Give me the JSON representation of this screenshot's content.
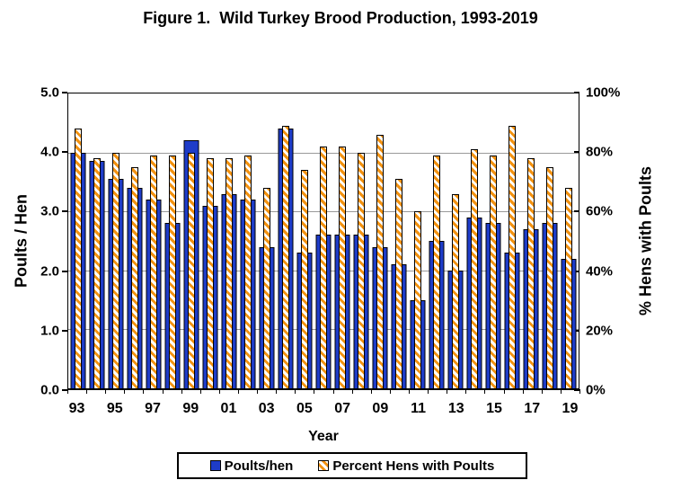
{
  "title": "Figure 1.  Wild Turkey Brood Production, 1993-2019",
  "colors": {
    "poults_blue": "#1e3cc8",
    "hatch_orange": "#f39210",
    "hatch_white": "#ffffff",
    "gridline_gray": "#999999",
    "axis_black": "#000000"
  },
  "left_axis": {
    "title": "Poults / Hen",
    "ticks": [
      "5.0",
      "4.0",
      "3.0",
      "2.0",
      "1.0",
      "0.0"
    ]
  },
  "right_axis": {
    "title": "% Hens with Poults",
    "ticks": [
      "100%",
      "80%",
      "60%",
      "40%",
      "20%",
      "0%"
    ]
  },
  "x_axis": {
    "title": "Year",
    "ticks": [
      "93",
      "95",
      "97",
      "99",
      "01",
      "03",
      "05",
      "07",
      "09",
      "11",
      "13",
      "15",
      "17",
      "19"
    ]
  },
  "legend": {
    "items": [
      {
        "label": "Poults/hen"
      },
      {
        "label": "Percent Hens with Poults"
      }
    ]
  },
  "chart_data": {
    "type": "bar",
    "title": "Figure 1.  Wild Turkey Brood Production, 1993-2019",
    "xlabel": "Year",
    "ylabel_left": "Poults / Hen",
    "ylabel_right": "% Hens with Poults",
    "ylim_left": [
      0.0,
      5.0
    ],
    "ylim_right": [
      0,
      100
    ],
    "grid": true,
    "legend_position": "bottom",
    "categories": [
      "93",
      "94",
      "95",
      "96",
      "97",
      "98",
      "99",
      "00",
      "01",
      "02",
      "03",
      "04",
      "05",
      "06",
      "07",
      "08",
      "09",
      "10",
      "11",
      "12",
      "13",
      "14",
      "15",
      "16",
      "17",
      "18",
      "19"
    ],
    "series": [
      {
        "name": "Poults/hen",
        "axis": "left",
        "style": "solid-blue",
        "values": [
          4.0,
          3.85,
          3.55,
          3.4,
          3.2,
          2.8,
          4.2,
          3.1,
          3.3,
          3.2,
          2.4,
          4.4,
          2.3,
          2.6,
          2.6,
          2.6,
          2.4,
          2.1,
          1.5,
          2.5,
          2.0,
          2.9,
          2.8,
          2.3,
          2.7,
          2.8,
          2.2
        ]
      },
      {
        "name": "Percent Hens with Poults",
        "axis": "right",
        "style": "orange-white-hatch",
        "values": [
          88,
          78,
          80,
          75,
          79,
          79,
          80,
          78,
          78,
          79,
          68,
          89,
          74,
          82,
          82,
          80,
          86,
          71,
          60,
          79,
          66,
          81,
          79,
          89,
          78,
          75,
          68
        ]
      }
    ]
  }
}
